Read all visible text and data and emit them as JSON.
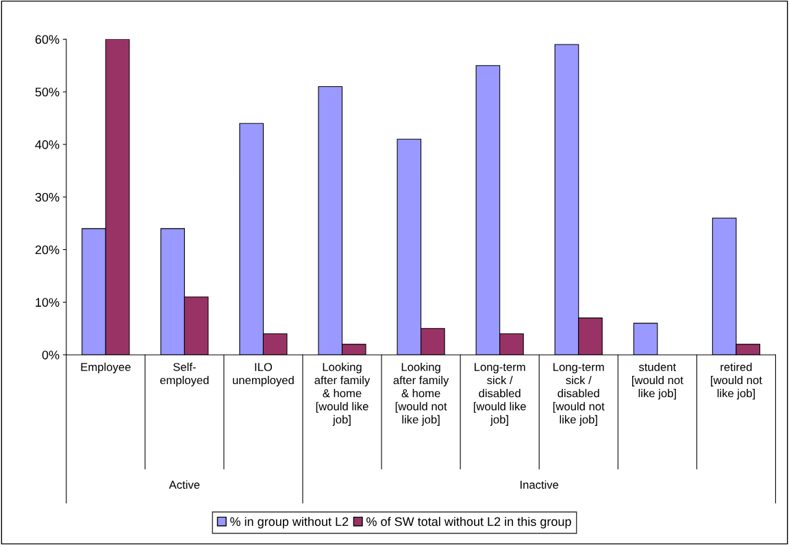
{
  "chart_data": {
    "type": "bar",
    "categories": [
      "Employee",
      "Self-\nemployed",
      "ILO\nunemployed",
      "Looking\nafter family\n& home\n[would like\njob]",
      "Looking\nafter family\n& home\n[would not\nlike job]",
      "Long-term\nsick /\ndisabled\n[would like\njob]",
      "Long-term\nsick /\ndisabled\n[would not\nlike job]",
      "student\n[would not\nlike job]",
      "retired\n[would not\nlike job]"
    ],
    "series": [
      {
        "name": "% in group without L2",
        "color": "#9999ff",
        "values": [
          24,
          24,
          44,
          51,
          41,
          55,
          59,
          6,
          26
        ]
      },
      {
        "name": "% of SW total without L2 in this group",
        "color": "#993366",
        "values": [
          60,
          11,
          4,
          2,
          5,
          4,
          7,
          null,
          2
        ]
      }
    ],
    "annotations": [
      "Active",
      "Inactive"
    ],
    "ylim": [
      0,
      60
    ],
    "yticks": [
      {
        "value": 0,
        "label": "0%"
      },
      {
        "value": 10,
        "label": "10%"
      },
      {
        "value": 20,
        "label": "20%"
      },
      {
        "value": 30,
        "label": "30%"
      },
      {
        "value": 40,
        "label": "40%"
      },
      {
        "value": 50,
        "label": "50%"
      },
      {
        "value": 60,
        "label": "60%"
      }
    ],
    "grid": false,
    "legend": "bottom"
  }
}
